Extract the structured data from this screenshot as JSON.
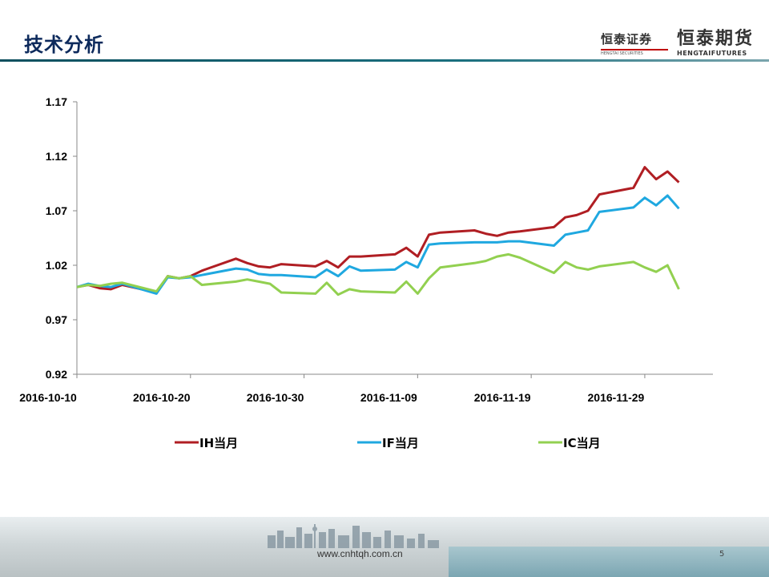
{
  "header": {
    "title": "技术分析",
    "logo_htsc": {
      "cn": "恒泰证券",
      "en": "HENGTAI SECURITIES"
    },
    "logo_htqh": {
      "cn": "恒泰期货",
      "en": "HENGTAIFUTURES"
    }
  },
  "footer": {
    "url": "www.cnhtqh.com.cn",
    "page": "5"
  },
  "colors": {
    "IH": "#b01e23",
    "IF": "#1fa8e0",
    "IC": "#92d050"
  },
  "chart_data": {
    "type": "line",
    "title": "",
    "xlabel": "",
    "ylabel": "",
    "ylim": [
      0.92,
      1.17
    ],
    "yticks": [
      "1.17",
      "1.12",
      "1.07",
      "1.02",
      "0.97",
      "0.92"
    ],
    "xticks": [
      "2016-10-10",
      "2016-10-20",
      "2016-10-30",
      "2016-11-09",
      "2016-11-19",
      "2016-11-29"
    ],
    "xlim": [
      "2016-10-10",
      "2016-12-05"
    ],
    "grid": false,
    "legend": "bottom",
    "x": [
      "2016-10-10",
      "2016-10-11",
      "2016-10-12",
      "2016-10-13",
      "2016-10-14",
      "2016-10-17",
      "2016-10-18",
      "2016-10-19",
      "2016-10-20",
      "2016-10-21",
      "2016-10-24",
      "2016-10-25",
      "2016-10-26",
      "2016-10-27",
      "2016-10-28",
      "2016-10-31",
      "2016-11-01",
      "2016-11-02",
      "2016-11-03",
      "2016-11-04",
      "2016-11-07",
      "2016-11-08",
      "2016-11-09",
      "2016-11-10",
      "2016-11-11",
      "2016-11-14",
      "2016-11-15",
      "2016-11-16",
      "2016-11-17",
      "2016-11-18",
      "2016-11-21",
      "2016-11-22",
      "2016-11-23",
      "2016-11-24",
      "2016-11-25",
      "2016-11-28",
      "2016-11-29",
      "2016-11-30",
      "2016-12-01",
      "2016-12-02"
    ],
    "series": [
      {
        "name": "IH当月",
        "values": [
          1.0,
          1.002,
          0.999,
          0.998,
          1.002,
          0.995,
          1.01,
          1.008,
          1.01,
          1.015,
          1.026,
          1.022,
          1.019,
          1.018,
          1.021,
          1.019,
          1.024,
          1.018,
          1.028,
          1.028,
          1.03,
          1.036,
          1.028,
          1.048,
          1.05,
          1.052,
          1.049,
          1.047,
          1.05,
          1.051,
          1.055,
          1.064,
          1.066,
          1.07,
          1.085,
          1.091,
          1.11,
          1.099,
          1.106,
          1.096
        ]
      },
      {
        "name": "IF当月",
        "values": [
          1.0,
          1.003,
          1.001,
          1.0,
          1.003,
          0.994,
          1.009,
          1.008,
          1.009,
          1.011,
          1.017,
          1.016,
          1.012,
          1.011,
          1.011,
          1.009,
          1.016,
          1.01,
          1.019,
          1.015,
          1.016,
          1.023,
          1.018,
          1.039,
          1.04,
          1.041,
          1.041,
          1.041,
          1.042,
          1.042,
          1.038,
          1.048,
          1.05,
          1.052,
          1.069,
          1.073,
          1.082,
          1.075,
          1.084,
          1.072
        ]
      },
      {
        "name": "IC当月",
        "values": [
          1.0,
          1.002,
          1.001,
          1.003,
          1.004,
          0.996,
          1.01,
          1.008,
          1.01,
          1.002,
          1.005,
          1.007,
          1.005,
          1.003,
          0.995,
          0.994,
          1.004,
          0.993,
          0.998,
          0.996,
          0.995,
          1.005,
          0.994,
          1.008,
          1.018,
          1.022,
          1.024,
          1.028,
          1.03,
          1.027,
          1.013,
          1.023,
          1.018,
          1.016,
          1.019,
          1.023,
          1.018,
          1.014,
          1.02,
          0.998
        ]
      }
    ]
  }
}
